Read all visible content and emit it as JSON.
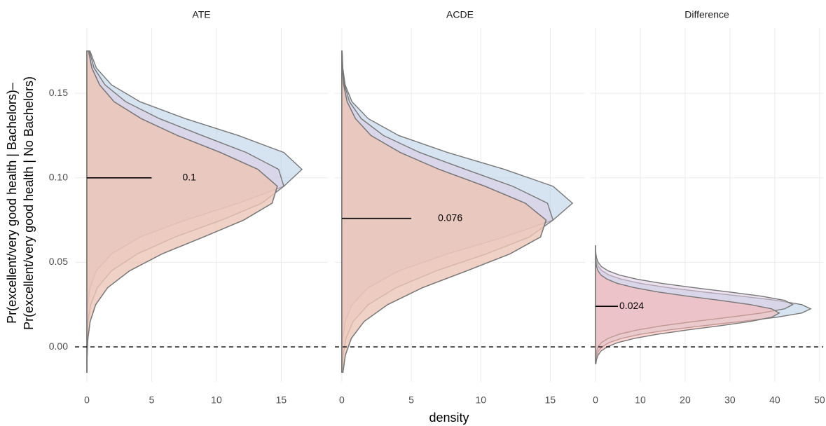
{
  "chart_data": [
    {
      "type": "density",
      "title": "ATE",
      "ylabel": [
        "Pr(excellent/very good health | Bachelors)–",
        "Pr(excellent/very good health | No Bachelors)"
      ],
      "y": [
        -0.015,
        -0.005,
        0.005,
        0.015,
        0.025,
        0.035,
        0.045,
        0.055,
        0.065,
        0.075,
        0.085,
        0.095,
        0.105,
        0.115,
        0.125,
        0.135,
        0.145,
        0.155,
        0.165,
        0.175
      ],
      "series": [
        {
          "color": "#b3cde3",
          "values": [
            0,
            0,
            0,
            0.01,
            0.06,
            0.24,
            0.73,
            1.9,
            4.1,
            7.6,
            11.7,
            15.2,
            16.6,
            15.2,
            11.7,
            7.6,
            4.1,
            1.9,
            0.73,
            0.24
          ]
        },
        {
          "color": "#decbe4",
          "values": [
            0,
            0.01,
            0.03,
            0.09,
            0.3,
            0.81,
            1.9,
            3.9,
            6.8,
            10.4,
            13.5,
            15.2,
            14.8,
            12.3,
            8.9,
            5.6,
            3.0,
            1.4,
            0.55,
            0.19
          ]
        },
        {
          "color": "#ccebc5",
          "values": [
            0.01,
            0.02,
            0.08,
            0.25,
            0.68,
            1.6,
            3.3,
            5.8,
            9.0,
            12.1,
            14.3,
            14.7,
            13.2,
            10.3,
            7.0,
            4.2,
            2.1,
            0.98,
            0.38,
            0.13
          ]
        },
        {
          "color": "#fbb4ae",
          "values": [
            0.01,
            0.02,
            0.08,
            0.25,
            0.68,
            1.6,
            3.3,
            5.8,
            9.0,
            12.1,
            14.3,
            14.7,
            13.2,
            10.3,
            7.0,
            4.2,
            2.1,
            0.98,
            0.38,
            0.13
          ]
        }
      ],
      "mean": 0.1,
      "mean_segment": [
        0,
        5
      ],
      "hline": 0,
      "xlim": [
        -0.92,
        18.6
      ],
      "xticks": [
        0,
        5,
        10,
        15
      ],
      "ylim": [
        -0.0207,
        0.1886
      ],
      "yticks": [
        {
          "value": 0,
          "label": "0.00"
        },
        {
          "value": 0.05,
          "label": "0.05"
        },
        {
          "value": 0.1,
          "label": "0.10"
        },
        {
          "value": 0.15,
          "label": "0.15"
        }
      ],
      "grid": true
    },
    {
      "type": "density",
      "title": "ACDE",
      "xlabel": "density",
      "y": [
        -0.015,
        -0.005,
        0.005,
        0.015,
        0.025,
        0.035,
        0.045,
        0.055,
        0.065,
        0.075,
        0.085,
        0.095,
        0.105,
        0.115,
        0.125,
        0.135,
        0.145,
        0.155,
        0.165,
        0.175
      ],
      "series": [
        {
          "color": "#b3cde3",
          "values": [
            0,
            0.01,
            0.06,
            0.24,
            0.73,
            1.9,
            4.1,
            7.6,
            11.7,
            15.2,
            16.6,
            15.2,
            11.7,
            7.6,
            4.1,
            1.9,
            0.73,
            0.24,
            0.07,
            0.02
          ]
        },
        {
          "color": "#decbe4",
          "values": [
            0.03,
            0.09,
            0.3,
            0.81,
            1.9,
            3.9,
            6.8,
            10.4,
            13.5,
            15.2,
            14.8,
            12.3,
            8.9,
            5.6,
            3.0,
            1.4,
            0.55,
            0.19,
            0.06,
            0.02
          ]
        },
        {
          "color": "#ccebc5",
          "values": [
            0.08,
            0.25,
            0.68,
            1.6,
            3.3,
            5.8,
            9.0,
            12.1,
            14.3,
            14.7,
            13.2,
            10.3,
            7.0,
            4.2,
            2.1,
            0.98,
            0.38,
            0.13,
            0.04,
            0.01
          ]
        },
        {
          "color": "#fbb4ae",
          "values": [
            0.08,
            0.25,
            0.68,
            1.6,
            3.3,
            5.8,
            9.0,
            12.1,
            14.3,
            14.7,
            13.2,
            10.3,
            7.0,
            4.2,
            2.1,
            0.98,
            0.38,
            0.13,
            0.04,
            0.01
          ]
        }
      ],
      "mean": 0.076,
      "mean_segment": [
        0,
        5
      ],
      "hline": 0,
      "xlim": [
        -0.5,
        17.5
      ],
      "xticks": [
        0,
        5,
        10,
        15
      ],
      "ylim": [
        -0.0207,
        0.1886
      ],
      "yticks": [
        0,
        0.05,
        0.1,
        0.15
      ],
      "grid": true
    },
    {
      "type": "density",
      "title": "Difference",
      "y": [
        -0.01,
        -0.0075,
        -0.005,
        -0.0025,
        0,
        0.0025,
        0.005,
        0.0075,
        0.01,
        0.0125,
        0.015,
        0.0175,
        0.02,
        0.0225,
        0.025,
        0.0275,
        0.03,
        0.0325,
        0.035,
        0.0375,
        0.04,
        0.0425,
        0.045,
        0.0475,
        0.05,
        0.0525,
        0.055,
        0.0575,
        0.06
      ],
      "series": [
        {
          "color": "#b3cde3",
          "values": [
            0,
            0.1,
            0.26,
            0.64,
            1.44,
            3.0,
            5.8,
            10.1,
            16.3,
            24,
            32.5,
            40.4,
            46,
            48,
            46,
            40.4,
            32.5,
            24,
            16.3,
            10.1,
            5.8,
            3.0,
            1.44,
            0.64,
            0.26,
            0.1,
            0,
            0,
            0
          ]
        },
        {
          "color": "#decbe4",
          "values": [
            0,
            0,
            0.09,
            0.24,
            0.59,
            1.3,
            2.8,
            5.3,
            9.3,
            14.9,
            22,
            29.8,
            37,
            42.2,
            44,
            42.2,
            37,
            29.8,
            22,
            14.9,
            9.3,
            5.3,
            2.8,
            1.3,
            0.59,
            0.24,
            0.09,
            0,
            0
          ]
        },
        {
          "color": "#fbb4ae",
          "values": [
            0.08,
            0.22,
            0.55,
            1.2,
            2.6,
            4.9,
            8.7,
            13.9,
            20.5,
            27.8,
            34.5,
            39.3,
            41,
            39.3,
            34.5,
            27.8,
            20.5,
            13.9,
            8.7,
            4.9,
            2.6,
            1.2,
            0.55,
            0.22,
            0.08,
            0,
            0,
            0,
            0
          ]
        }
      ],
      "mean": 0.024,
      "mean_segment": [
        0,
        5
      ],
      "hline": 0,
      "xlim": [
        -1.1,
        50.8
      ],
      "xticks": [
        0,
        10,
        20,
        30,
        40,
        50
      ],
      "ylim": [
        -0.0207,
        0.1886
      ],
      "yticks": [
        0,
        0.05,
        0.1,
        0.15
      ],
      "grid": true
    }
  ]
}
